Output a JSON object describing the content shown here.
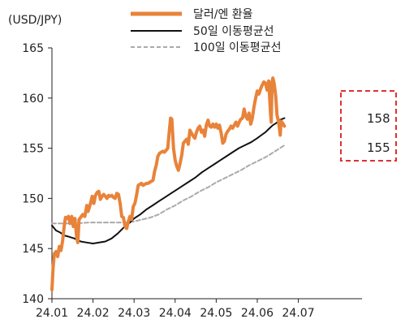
{
  "chart_data": {
    "type": "line",
    "unit_label": "(USD/JPY)",
    "ylim": [
      140,
      165
    ],
    "yticks": [
      140,
      145,
      150,
      155,
      160,
      165
    ],
    "xlim": [
      0,
      7.55
    ],
    "xticks": [
      {
        "x": 0,
        "label": "24.01"
      },
      {
        "x": 1,
        "label": "24.02"
      },
      {
        "x": 2,
        "label": "24.03"
      },
      {
        "x": 3,
        "label": "24.04"
      },
      {
        "x": 4,
        "label": "24.05"
      },
      {
        "x": 5,
        "label": "24.06"
      },
      {
        "x": 6,
        "label": "24.07"
      }
    ],
    "grid": false,
    "legend": "top-center",
    "series": [
      {
        "name": "달러/엔 환율",
        "color": "#e8833a",
        "style": "solid-thick",
        "points": [
          [
            0.0,
            140.9
          ],
          [
            0.03,
            143.2
          ],
          [
            0.06,
            144.5
          ],
          [
            0.1,
            144.7
          ],
          [
            0.14,
            144.2
          ],
          [
            0.18,
            145.2
          ],
          [
            0.22,
            144.8
          ],
          [
            0.26,
            145.8
          ],
          [
            0.3,
            147.3
          ],
          [
            0.33,
            148.1
          ],
          [
            0.36,
            148.0
          ],
          [
            0.4,
            148.2
          ],
          [
            0.44,
            147.5
          ],
          [
            0.48,
            148.2
          ],
          [
            0.52,
            147.2
          ],
          [
            0.56,
            148.0
          ],
          [
            0.6,
            146.2
          ],
          [
            0.63,
            145.6
          ],
          [
            0.66,
            147.9
          ],
          [
            0.7,
            148.1
          ],
          [
            0.75,
            148.4
          ],
          [
            0.8,
            148.2
          ],
          [
            0.85,
            149.3
          ],
          [
            0.88,
            148.7
          ],
          [
            0.92,
            149.2
          ],
          [
            0.95,
            149.7
          ],
          [
            0.98,
            150.2
          ],
          [
            1.02,
            149.5
          ],
          [
            1.06,
            150.3
          ],
          [
            1.1,
            150.6
          ],
          [
            1.14,
            150.7
          ],
          [
            1.18,
            149.9
          ],
          [
            1.22,
            150.2
          ],
          [
            1.26,
            150.4
          ],
          [
            1.3,
            150.2
          ],
          [
            1.34,
            150.0
          ],
          [
            1.38,
            150.3
          ],
          [
            1.42,
            150.2
          ],
          [
            1.46,
            150.3
          ],
          [
            1.5,
            150.1
          ],
          [
            1.54,
            150.0
          ],
          [
            1.58,
            150.5
          ],
          [
            1.62,
            150.4
          ],
          [
            1.66,
            149.5
          ],
          [
            1.7,
            148.2
          ],
          [
            1.74,
            148.1
          ],
          [
            1.78,
            147.2
          ],
          [
            1.82,
            147.0
          ],
          [
            1.86,
            147.7
          ],
          [
            1.9,
            148.2
          ],
          [
            1.94,
            147.9
          ],
          [
            1.98,
            149.2
          ],
          [
            2.02,
            149.5
          ],
          [
            2.06,
            150.3
          ],
          [
            2.1,
            151.3
          ],
          [
            2.14,
            151.4
          ],
          [
            2.18,
            151.5
          ],
          [
            2.22,
            151.3
          ],
          [
            2.26,
            151.4
          ],
          [
            2.3,
            151.5
          ],
          [
            2.34,
            151.5
          ],
          [
            2.38,
            151.6
          ],
          [
            2.42,
            151.7
          ],
          [
            2.46,
            151.8
          ],
          [
            2.5,
            152.7
          ],
          [
            2.54,
            153.3
          ],
          [
            2.58,
            154.2
          ],
          [
            2.62,
            154.5
          ],
          [
            2.66,
            154.6
          ],
          [
            2.7,
            154.7
          ],
          [
            2.74,
            154.6
          ],
          [
            2.78,
            154.8
          ],
          [
            2.82,
            155.0
          ],
          [
            2.86,
            156.8
          ],
          [
            2.89,
            158.0
          ],
          [
            2.92,
            157.9
          ],
          [
            2.96,
            155.0
          ],
          [
            3.0,
            153.8
          ],
          [
            3.04,
            153.2
          ],
          [
            3.08,
            152.8
          ],
          [
            3.12,
            153.5
          ],
          [
            3.16,
            154.3
          ],
          [
            3.2,
            155.5
          ],
          [
            3.24,
            155.7
          ],
          [
            3.28,
            155.9
          ],
          [
            3.32,
            155.4
          ],
          [
            3.36,
            156.8
          ],
          [
            3.4,
            156.5
          ],
          [
            3.44,
            156.2
          ],
          [
            3.48,
            156.0
          ],
          [
            3.52,
            156.6
          ],
          [
            3.56,
            157.0
          ],
          [
            3.6,
            157.2
          ],
          [
            3.64,
            156.6
          ],
          [
            3.68,
            156.8
          ],
          [
            3.72,
            156.2
          ],
          [
            3.76,
            157.3
          ],
          [
            3.8,
            157.8
          ],
          [
            3.84,
            157.2
          ],
          [
            3.88,
            157.1
          ],
          [
            3.92,
            157.4
          ],
          [
            3.96,
            157.1
          ],
          [
            4.0,
            157.4
          ],
          [
            4.04,
            157.0
          ],
          [
            4.08,
            157.3
          ],
          [
            4.12,
            156.5
          ],
          [
            4.16,
            155.5
          ],
          [
            4.2,
            155.7
          ],
          [
            4.24,
            156.4
          ],
          [
            4.28,
            156.7
          ],
          [
            4.32,
            156.9
          ],
          [
            4.36,
            157.2
          ],
          [
            4.4,
            157.0
          ],
          [
            4.44,
            157.3
          ],
          [
            4.48,
            157.6
          ],
          [
            4.52,
            157.2
          ],
          [
            4.56,
            157.6
          ],
          [
            4.6,
            157.9
          ],
          [
            4.64,
            158.0
          ],
          [
            4.68,
            158.9
          ],
          [
            4.72,
            158.2
          ],
          [
            4.76,
            157.9
          ],
          [
            4.8,
            158.5
          ],
          [
            4.84,
            157.4
          ],
          [
            4.88,
            158.0
          ],
          [
            4.92,
            159.1
          ],
          [
            4.96,
            160.0
          ],
          [
            5.0,
            160.7
          ],
          [
            5.04,
            160.4
          ],
          [
            5.08,
            160.9
          ],
          [
            5.12,
            161.3
          ],
          [
            5.16,
            161.6
          ],
          [
            5.2,
            161.5
          ],
          [
            5.24,
            160.8
          ],
          [
            5.28,
            161.7
          ],
          [
            5.32,
            158.6
          ],
          [
            5.34,
            157.6
          ],
          [
            5.36,
            161.6
          ],
          [
            5.38,
            162.0
          ],
          [
            5.41,
            161.5
          ],
          [
            5.45,
            160.2
          ],
          [
            5.48,
            158.3
          ],
          [
            5.52,
            157.6
          ],
          [
            5.56,
            156.3
          ],
          [
            5.58,
            157.7
          ],
          [
            5.62,
            157.5
          ],
          [
            5.66,
            157.2
          ]
        ]
      },
      {
        "name": "50일 이동평균선",
        "color": "#111111",
        "style": "solid",
        "points": [
          [
            0.0,
            147.3
          ],
          [
            0.1,
            146.8
          ],
          [
            0.2,
            146.6
          ],
          [
            0.3,
            146.3
          ],
          [
            0.4,
            146.2
          ],
          [
            0.55,
            146.0
          ],
          [
            0.7,
            145.7
          ],
          [
            0.85,
            145.6
          ],
          [
            1.0,
            145.5
          ],
          [
            1.15,
            145.6
          ],
          [
            1.3,
            145.7
          ],
          [
            1.45,
            146.0
          ],
          [
            1.6,
            146.5
          ],
          [
            1.75,
            147.1
          ],
          [
            1.9,
            147.6
          ],
          [
            2.0,
            148.0
          ],
          [
            2.15,
            148.4
          ],
          [
            2.3,
            148.9
          ],
          [
            2.45,
            149.3
          ],
          [
            2.6,
            149.7
          ],
          [
            2.75,
            150.1
          ],
          [
            2.9,
            150.5
          ],
          [
            3.05,
            150.9
          ],
          [
            3.2,
            151.3
          ],
          [
            3.35,
            151.7
          ],
          [
            3.5,
            152.1
          ],
          [
            3.65,
            152.6
          ],
          [
            3.8,
            153.0
          ],
          [
            3.95,
            153.4
          ],
          [
            4.1,
            153.8
          ],
          [
            4.25,
            154.2
          ],
          [
            4.4,
            154.6
          ],
          [
            4.55,
            155.0
          ],
          [
            4.7,
            155.3
          ],
          [
            4.85,
            155.6
          ],
          [
            5.0,
            156.0
          ],
          [
            5.1,
            156.3
          ],
          [
            5.2,
            156.6
          ],
          [
            5.3,
            157.0
          ],
          [
            5.38,
            157.3
          ],
          [
            5.46,
            157.5
          ],
          [
            5.54,
            157.8
          ],
          [
            5.6,
            157.9
          ],
          [
            5.66,
            158.0
          ]
        ]
      },
      {
        "name": "100일 이동평균선",
        "color": "#aaaaaa",
        "style": "dashed",
        "points": [
          [
            0.0,
            147.5
          ],
          [
            0.3,
            147.5
          ],
          [
            0.6,
            147.5
          ],
          [
            0.9,
            147.6
          ],
          [
            1.2,
            147.6
          ],
          [
            1.5,
            147.6
          ],
          [
            1.8,
            147.6
          ],
          [
            2.0,
            147.7
          ],
          [
            2.2,
            147.9
          ],
          [
            2.4,
            148.1
          ],
          [
            2.6,
            148.4
          ],
          [
            2.8,
            148.9
          ],
          [
            3.0,
            149.3
          ],
          [
            3.2,
            149.8
          ],
          [
            3.4,
            150.2
          ],
          [
            3.6,
            150.7
          ],
          [
            3.8,
            151.1
          ],
          [
            4.0,
            151.6
          ],
          [
            4.2,
            152.0
          ],
          [
            4.4,
            152.4
          ],
          [
            4.6,
            152.8
          ],
          [
            4.8,
            153.3
          ],
          [
            5.0,
            153.7
          ],
          [
            5.2,
            154.1
          ],
          [
            5.4,
            154.6
          ],
          [
            5.55,
            155.0
          ],
          [
            5.66,
            155.3
          ]
        ]
      }
    ],
    "annotations": [
      {
        "label": "158",
        "value": 158
      },
      {
        "label": "155",
        "value": 155
      }
    ],
    "highlight_box_color": "#e03030"
  }
}
